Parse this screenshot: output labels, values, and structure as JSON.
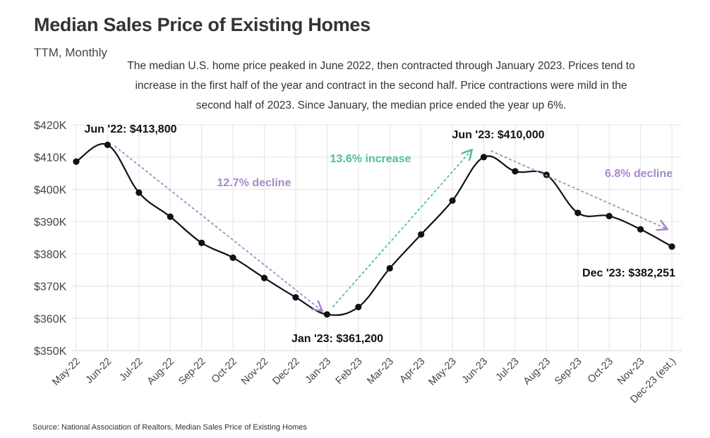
{
  "header": {
    "title": "Median Sales Price of Existing Homes",
    "subtitle": "TTM, Monthly",
    "description": "The median U.S. home price peaked in June 2022, then contracted through January 2023. Prices tend to increase in the first half of the year and contract in the second half. Price contractions were mild in the second half of 2023. Since January, the median price ended the year up 6%."
  },
  "source": "Source:  National Association of Realtors, Median Sales Price of Existing Homes",
  "chart_data": {
    "type": "line",
    "categories": [
      "May-22",
      "Jun-22",
      "Jul-22",
      "Aug-22",
      "Sep-22",
      "Oct-22",
      "Nov-22",
      "Dec-22",
      "Jan-23",
      "Feb-23",
      "Mar-23",
      "Apr-23",
      "May-23",
      "Jun-23",
      "Jul-23",
      "Aug-23",
      "Sep-23",
      "Oct-23",
      "Nov-23",
      "Dec-23 (est.)"
    ],
    "series": [
      {
        "values": [
          408600,
          413800,
          399000,
          391500,
          383400,
          378800,
          372500,
          366500,
          361200,
          363500,
          375500,
          386000,
          396500,
          410000,
          405600,
          404500,
          392700,
          391700,
          387600,
          382251
        ]
      }
    ],
    "ylim": [
      350000,
      420000
    ],
    "yticks": [
      {
        "value": 350000,
        "label": "$350K"
      },
      {
        "value": 360000,
        "label": "$360K"
      },
      {
        "value": 370000,
        "label": "$370K"
      },
      {
        "value": 380000,
        "label": "$380K"
      },
      {
        "value": 390000,
        "label": "$390K"
      },
      {
        "value": 400000,
        "label": "$400K"
      },
      {
        "value": 410000,
        "label": "$410K"
      },
      {
        "value": 420000,
        "label": "$420K"
      }
    ],
    "grid": true,
    "colors": {
      "line": "#111111",
      "decline": "#a58bc9",
      "increase": "#4fbfa6",
      "grid": "#e3e3e3"
    },
    "annotations": [
      {
        "text": "Jun '22: $413,800",
        "category": "Jun-22",
        "value": 413800
      },
      {
        "text": "Jan '23: $361,200",
        "category": "Jan-23",
        "value": 361200
      },
      {
        "text": "Jun '23: $410,000",
        "category": "Jun-23",
        "value": 410000
      },
      {
        "text": "Dec '23: $382,251",
        "category": "Dec-23 (est.)",
        "value": 382251
      }
    ],
    "trends": [
      {
        "text": "12.7% decline",
        "kind": "decline",
        "from": {
          "category": "Jun-22",
          "value": 413000
        },
        "to": {
          "category": "Jan-23",
          "value": 362500
        }
      },
      {
        "text": "13.6% increase",
        "kind": "increase",
        "from": {
          "category": "Jan-23",
          "value": 363500
        },
        "to": {
          "category": "Jun-23",
          "value": 412000
        }
      },
      {
        "text": "6.8% decline",
        "kind": "decline",
        "from": {
          "category": "Jun-23",
          "value": 411500
        },
        "to": {
          "category": "Dec-23 (est.)",
          "value": 387800
        }
      }
    ]
  }
}
